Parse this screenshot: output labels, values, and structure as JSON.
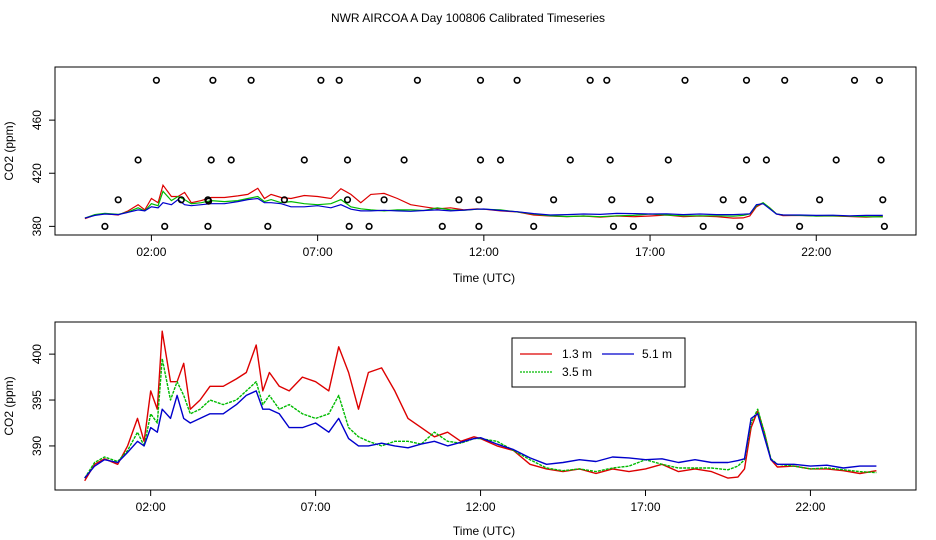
{
  "figure_title": "NWR AIRCOA A  Day 100806  Calibrated Timeseries",
  "colors": {
    "s13": "#dd0000",
    "s35": "#00bb00",
    "s51": "#0000cc",
    "axis": "#000000"
  },
  "chart_data": [
    {
      "type": "line",
      "title": "",
      "xlabel": "Time (UTC)",
      "ylabel": "CO2 (ppm)",
      "xlim": [
        -0.9,
        25.0
      ],
      "ylim": [
        373.5,
        500
      ],
      "xticks": [
        2,
        7,
        12,
        17,
        22
      ],
      "xtick_labels": [
        "02:00",
        "07:00",
        "12:00",
        "17:00",
        "22:00"
      ],
      "yticks": [
        380,
        420,
        460
      ],
      "ytick_labels": [
        "380",
        "420",
        "460"
      ],
      "calibration_points": [
        {
          "x": 0.6,
          "y": 380
        },
        {
          "x": 2.4,
          "y": 380
        },
        {
          "x": 3.7,
          "y": 380
        },
        {
          "x": 5.5,
          "y": 380
        },
        {
          "x": 7.95,
          "y": 380
        },
        {
          "x": 8.55,
          "y": 380
        },
        {
          "x": 10.75,
          "y": 380
        },
        {
          "x": 11.85,
          "y": 380
        },
        {
          "x": 13.5,
          "y": 380
        },
        {
          "x": 15.9,
          "y": 380
        },
        {
          "x": 16.5,
          "y": 380
        },
        {
          "x": 18.6,
          "y": 380
        },
        {
          "x": 19.7,
          "y": 380
        },
        {
          "x": 21.5,
          "y": 380
        },
        {
          "x": 24.05,
          "y": 380
        },
        {
          "x": 1.0,
          "y": 400
        },
        {
          "x": 2.9,
          "y": 400
        },
        {
          "x": 3.7,
          "y": 400
        },
        {
          "x": 3.72,
          "y": 399
        },
        {
          "x": 6.0,
          "y": 400
        },
        {
          "x": 7.9,
          "y": 400
        },
        {
          "x": 9.0,
          "y": 400
        },
        {
          "x": 11.25,
          "y": 400
        },
        {
          "x": 11.85,
          "y": 400
        },
        {
          "x": 14.1,
          "y": 400
        },
        {
          "x": 15.85,
          "y": 400
        },
        {
          "x": 17.0,
          "y": 400
        },
        {
          "x": 19.2,
          "y": 400
        },
        {
          "x": 19.8,
          "y": 400
        },
        {
          "x": 22.1,
          "y": 400
        },
        {
          "x": 24.0,
          "y": 400
        },
        {
          "x": 1.6,
          "y": 430
        },
        {
          "x": 3.8,
          "y": 430
        },
        {
          "x": 4.4,
          "y": 430
        },
        {
          "x": 6.6,
          "y": 430
        },
        {
          "x": 7.9,
          "y": 430
        },
        {
          "x": 9.6,
          "y": 430
        },
        {
          "x": 11.9,
          "y": 430
        },
        {
          "x": 12.5,
          "y": 430
        },
        {
          "x": 14.6,
          "y": 430
        },
        {
          "x": 15.8,
          "y": 430
        },
        {
          "x": 17.55,
          "y": 430
        },
        {
          "x": 19.9,
          "y": 430
        },
        {
          "x": 20.5,
          "y": 430
        },
        {
          "x": 22.6,
          "y": 430
        },
        {
          "x": 23.95,
          "y": 430
        },
        {
          "x": 2.15,
          "y": 490
        },
        {
          "x": 3.85,
          "y": 490
        },
        {
          "x": 5.0,
          "y": 490
        },
        {
          "x": 7.1,
          "y": 490
        },
        {
          "x": 7.65,
          "y": 490
        },
        {
          "x": 10.0,
          "y": 490
        },
        {
          "x": 11.9,
          "y": 490
        },
        {
          "x": 13.0,
          "y": 490
        },
        {
          "x": 15.2,
          "y": 490
        },
        {
          "x": 15.7,
          "y": 490
        },
        {
          "x": 18.05,
          "y": 490
        },
        {
          "x": 19.9,
          "y": 490
        },
        {
          "x": 21.05,
          "y": 490
        },
        {
          "x": 23.15,
          "y": 490
        },
        {
          "x": 23.9,
          "y": 490
        }
      ]
    },
    {
      "type": "line",
      "title": "",
      "xlabel": "Time (UTC)",
      "ylabel": "CO2 (ppm)",
      "xlim": [
        -0.9,
        25.2
      ],
      "ylim": [
        385.2,
        403.5
      ],
      "xticks": [
        2,
        7,
        12,
        17,
        22
      ],
      "xtick_labels": [
        "02:00",
        "07:00",
        "12:00",
        "17:00",
        "22:00"
      ],
      "yticks": [
        390,
        395,
        400
      ],
      "ytick_labels": [
        "390",
        "395",
        "400"
      ],
      "legend": {
        "placement": "top-center",
        "entries": [
          "1.3 m",
          "5.1 m",
          "3.5 m"
        ]
      },
      "series": [
        {
          "name": "1.3 m",
          "color": "#dd0000",
          "x": [
            0.0,
            0.3,
            0.6,
            1.0,
            1.3,
            1.6,
            1.8,
            2.0,
            2.2,
            2.35,
            2.6,
            2.8,
            3.0,
            3.2,
            3.5,
            3.8,
            4.2,
            4.6,
            4.9,
            5.2,
            5.4,
            5.6,
            5.9,
            6.2,
            6.6,
            7.0,
            7.4,
            7.7,
            8.0,
            8.3,
            8.6,
            9.0,
            9.4,
            9.8,
            10.2,
            10.6,
            11.0,
            11.4,
            11.8,
            12.0,
            12.5,
            13.0,
            13.5,
            14.0,
            14.5,
            15.0,
            15.5,
            16.0,
            16.5,
            17.0,
            17.5,
            18.0,
            18.5,
            19.0,
            19.5,
            19.8,
            20.0,
            20.2,
            20.4,
            20.6,
            20.8,
            21.0,
            21.5,
            22.0,
            22.5,
            23.0,
            23.5,
            24.0
          ],
          "y": [
            386.2,
            388.0,
            388.6,
            388.0,
            390.0,
            393.0,
            390.5,
            396.0,
            394.0,
            402.5,
            397.0,
            397.0,
            399.0,
            394.0,
            395.0,
            396.5,
            396.5,
            397.3,
            398.0,
            401.0,
            396.0,
            398.0,
            396.5,
            396.0,
            397.5,
            397.0,
            396.0,
            400.8,
            398.0,
            394.0,
            398.0,
            398.5,
            396.0,
            393.0,
            392.0,
            391.0,
            391.5,
            390.5,
            391.0,
            390.8,
            390.0,
            389.5,
            388.0,
            387.5,
            387.2,
            387.5,
            387.0,
            387.5,
            387.2,
            387.5,
            388.0,
            387.2,
            387.5,
            387.2,
            386.5,
            386.6,
            387.5,
            392.0,
            393.8,
            391.5,
            388.5,
            387.7,
            387.8,
            387.5,
            387.5,
            387.3,
            387.0,
            387.3
          ]
        },
        {
          "name": "3.5 m",
          "color": "#00bb00",
          "x": [
            0.0,
            0.3,
            0.6,
            1.0,
            1.3,
            1.6,
            1.8,
            2.0,
            2.2,
            2.35,
            2.6,
            2.8,
            3.0,
            3.2,
            3.5,
            3.8,
            4.2,
            4.6,
            4.9,
            5.2,
            5.4,
            5.6,
            5.9,
            6.2,
            6.6,
            7.0,
            7.4,
            7.7,
            8.0,
            8.3,
            8.6,
            9.0,
            9.4,
            9.8,
            10.2,
            10.6,
            11.0,
            11.4,
            11.8,
            12.0,
            12.5,
            13.0,
            13.5,
            14.0,
            14.5,
            15.0,
            15.5,
            16.0,
            16.5,
            17.0,
            17.5,
            18.0,
            18.5,
            19.0,
            19.5,
            19.8,
            20.0,
            20.2,
            20.4,
            20.6,
            20.8,
            21.0,
            21.5,
            22.0,
            22.5,
            23.0,
            23.5,
            24.0
          ],
          "y": [
            386.5,
            388.2,
            388.8,
            388.3,
            389.5,
            391.5,
            390.0,
            393.5,
            392.5,
            399.5,
            395.0,
            397.0,
            395.5,
            393.5,
            394.0,
            395.0,
            394.5,
            395.0,
            396.0,
            397.0,
            394.5,
            395.5,
            394.0,
            394.5,
            393.5,
            393.0,
            393.5,
            395.5,
            392.0,
            391.0,
            390.5,
            390.0,
            390.5,
            390.5,
            390.2,
            391.5,
            390.5,
            390.3,
            390.8,
            390.8,
            390.5,
            389.5,
            388.5,
            387.6,
            387.3,
            387.5,
            387.2,
            387.6,
            387.8,
            388.5,
            388.0,
            387.6,
            387.6,
            387.6,
            387.4,
            387.8,
            388.5,
            392.5,
            394.0,
            391.5,
            388.6,
            388.0,
            387.8,
            387.5,
            387.6,
            387.4,
            387.2,
            387.1
          ]
        },
        {
          "name": "5.1 m",
          "color": "#0000cc",
          "x": [
            0.0,
            0.3,
            0.6,
            1.0,
            1.3,
            1.6,
            1.8,
            2.0,
            2.2,
            2.35,
            2.6,
            2.8,
            3.0,
            3.2,
            3.5,
            3.8,
            4.2,
            4.6,
            4.9,
            5.2,
            5.4,
            5.6,
            5.9,
            6.2,
            6.6,
            7.0,
            7.4,
            7.7,
            8.0,
            8.3,
            8.6,
            9.0,
            9.4,
            9.8,
            10.2,
            10.6,
            11.0,
            11.4,
            11.8,
            12.0,
            12.5,
            13.0,
            13.5,
            14.0,
            14.5,
            15.0,
            15.5,
            16.0,
            16.5,
            17.0,
            17.5,
            18.0,
            18.5,
            19.0,
            19.5,
            19.8,
            20.0,
            20.2,
            20.4,
            20.6,
            20.8,
            21.0,
            21.5,
            22.0,
            22.5,
            23.0,
            23.5,
            24.0
          ],
          "y": [
            386.5,
            387.8,
            388.5,
            388.2,
            389.3,
            390.5,
            390.0,
            392.0,
            391.5,
            394.0,
            393.0,
            395.5,
            393.0,
            392.5,
            393.0,
            393.5,
            393.5,
            394.5,
            395.5,
            396.0,
            394.0,
            394.0,
            393.5,
            392.0,
            392.0,
            392.5,
            391.5,
            393.0,
            390.8,
            390.0,
            390.0,
            390.3,
            390.0,
            389.8,
            390.2,
            390.5,
            390.0,
            390.4,
            390.8,
            390.9,
            390.2,
            389.6,
            388.7,
            388.0,
            388.2,
            388.5,
            388.3,
            388.8,
            388.7,
            388.5,
            388.6,
            388.2,
            388.5,
            388.2,
            388.2,
            388.4,
            388.6,
            393.0,
            393.5,
            391.0,
            388.5,
            388.0,
            388.0,
            387.8,
            387.9,
            387.6,
            387.8,
            387.8
          ]
        }
      ]
    }
  ]
}
